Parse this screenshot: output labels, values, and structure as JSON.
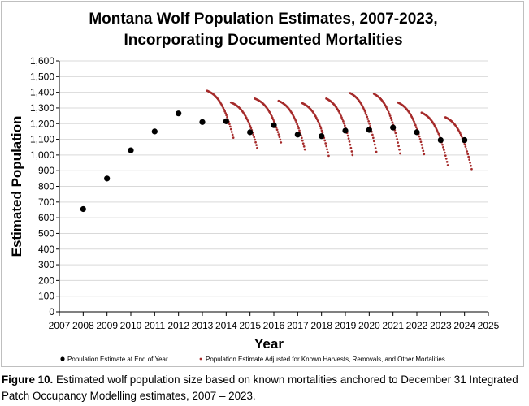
{
  "chart_data": {
    "type": "scatter",
    "title_lines": [
      "Montana Wolf Population Estimates, 2007-2023,",
      "Incorporating Documented Mortalities"
    ],
    "xlabel": "Year",
    "ylabel": "Estimated Population",
    "xlim": [
      2007,
      2025
    ],
    "ylim": [
      0,
      1600
    ],
    "x_ticks": [
      "2007",
      "2008",
      "2009",
      "2010",
      "2011",
      "2012",
      "2013",
      "2014",
      "2015",
      "2016",
      "2017",
      "2018",
      "2019",
      "2020",
      "2021",
      "2022",
      "2023",
      "2024",
      "2025"
    ],
    "y_ticks": [
      "0",
      "100",
      "200",
      "300",
      "400",
      "500",
      "600",
      "700",
      "800",
      "900",
      "1,000",
      "1,100",
      "1,200",
      "1,300",
      "1,400",
      "1,500",
      "1,600"
    ],
    "grid": "horizontal",
    "legend_position": "bottom",
    "series": [
      {
        "name": "Population Estimate at End of Year",
        "color": "#000000",
        "marker": "circle",
        "points": [
          [
            2008,
            655
          ],
          [
            2009,
            850
          ],
          [
            2010,
            1030
          ],
          [
            2011,
            1150
          ],
          [
            2012,
            1265
          ],
          [
            2013,
            1210
          ],
          [
            2014,
            1215
          ],
          [
            2015,
            1145
          ],
          [
            2016,
            1190
          ],
          [
            2017,
            1130
          ],
          [
            2018,
            1120
          ],
          [
            2019,
            1155
          ],
          [
            2020,
            1160
          ],
          [
            2021,
            1175
          ],
          [
            2022,
            1145
          ],
          [
            2023,
            1095
          ],
          [
            2024,
            1095
          ]
        ]
      },
      {
        "name": "Population Estimate Adjusted for Known Harvests, Removals, and Other Mortalities",
        "color": "#a52a2a",
        "marker": "small-dot",
        "segments": [
          {
            "start": [
              2013.2,
              1410
            ],
            "end": [
              2014.3,
              1110
            ],
            "base": 1215
          },
          {
            "start": [
              2014.2,
              1335
            ],
            "end": [
              2015.3,
              1045
            ],
            "base": 1145
          },
          {
            "start": [
              2015.2,
              1360
            ],
            "end": [
              2016.3,
              1080
            ],
            "base": 1190
          },
          {
            "start": [
              2016.2,
              1345
            ],
            "end": [
              2017.3,
              1035
            ],
            "base": 1130
          },
          {
            "start": [
              2017.2,
              1330
            ],
            "end": [
              2018.3,
              995
            ],
            "base": 1120
          },
          {
            "start": [
              2018.2,
              1360
            ],
            "end": [
              2019.3,
              1000
            ],
            "base": 1155
          },
          {
            "start": [
              2019.2,
              1395
            ],
            "end": [
              2020.3,
              1020
            ],
            "base": 1160
          },
          {
            "start": [
              2020.2,
              1390
            ],
            "end": [
              2021.3,
              1010
            ],
            "base": 1175
          },
          {
            "start": [
              2021.2,
              1335
            ],
            "end": [
              2022.3,
              1005
            ],
            "base": 1145
          },
          {
            "start": [
              2022.2,
              1270
            ],
            "end": [
              2023.3,
              935
            ],
            "base": 1095
          },
          {
            "start": [
              2023.2,
              1240
            ],
            "end": [
              2024.3,
              910
            ],
            "base": 1095
          }
        ]
      }
    ]
  },
  "caption": {
    "label": "Figure 10.",
    "text": " Estimated wolf population size based on known mortalities anchored to December 31 Integrated Patch Occupancy Modelling estimates, 2007 – 2023."
  }
}
